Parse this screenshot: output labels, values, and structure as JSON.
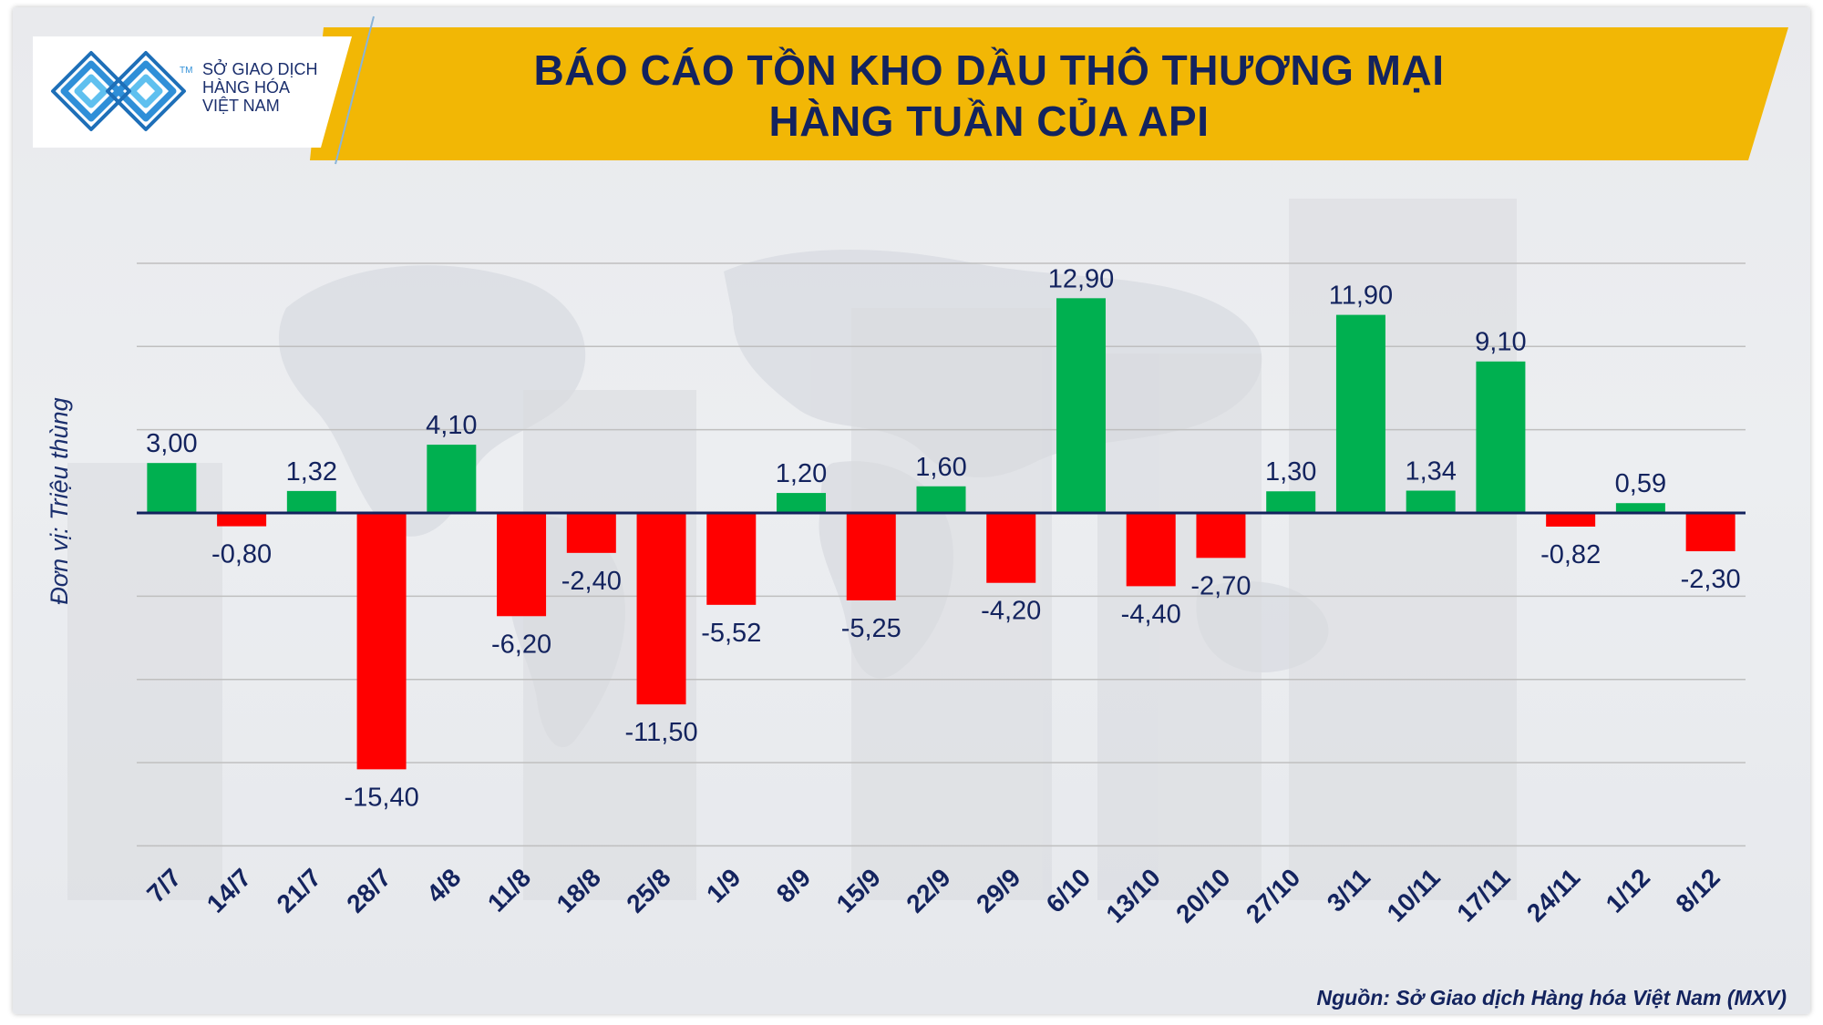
{
  "header": {
    "title_line1": "BÁO CÁO TỒN KHO DẦU THÔ THƯƠNG MẠI",
    "title_line2": "HÀNG TUẦN CỦA API"
  },
  "logo": {
    "tm": "TM",
    "line1": "SỞ GIAO DỊCH",
    "line2": "HÀNG HÓA",
    "line3": "VIỆT NAM"
  },
  "footer": {
    "source": "Nguồn: Sở Giao dịch Hàng hóa Việt Nam (MXV)"
  },
  "colors": {
    "positive": "#00b050",
    "negative": "#ff0000",
    "banner": "#f2b705",
    "title": "#13235e",
    "axis_text": "#13235e",
    "gridline": "#bfbfbf"
  },
  "chart_data": {
    "type": "bar",
    "title": "BÁO CÁO TỒN KHO DẦU THÔ THƯƠNG MẠI HÀNG TUẦN CỦA API",
    "ylabel": "Đơn vị: Triệu thùng",
    "xlabel": "",
    "ylim": [
      -20,
      15
    ],
    "grid": true,
    "categories": [
      "7/7",
      "14/7",
      "21/7",
      "28/7",
      "4/8",
      "11/8",
      "18/8",
      "25/8",
      "1/9",
      "8/9",
      "15/9",
      "22/9",
      "29/9",
      "6/10",
      "13/10",
      "20/10",
      "27/10",
      "3/11",
      "10/11",
      "17/11",
      "24/11",
      "1/12",
      "8/12"
    ],
    "values": [
      3.0,
      -0.8,
      1.32,
      -15.4,
      4.1,
      -6.2,
      -2.4,
      -11.5,
      -5.52,
      1.2,
      -5.25,
      1.6,
      -4.2,
      12.9,
      -4.4,
      -2.7,
      1.3,
      11.9,
      1.34,
      9.1,
      -0.82,
      0.59,
      -2.3
    ],
    "data_labels": [
      "3,00",
      "-0,80",
      "1,32",
      "-15,40",
      "4,10",
      "-6,20",
      "-2,40",
      "-11,50",
      "-5,52",
      "1,20",
      "-5,25",
      "1,60",
      "-4,20",
      "12,90",
      "-4,40",
      "-2,70",
      "1,30",
      "11,90",
      "1,34",
      "9,10",
      "-0,82",
      "0,59",
      "-2,30"
    ]
  }
}
